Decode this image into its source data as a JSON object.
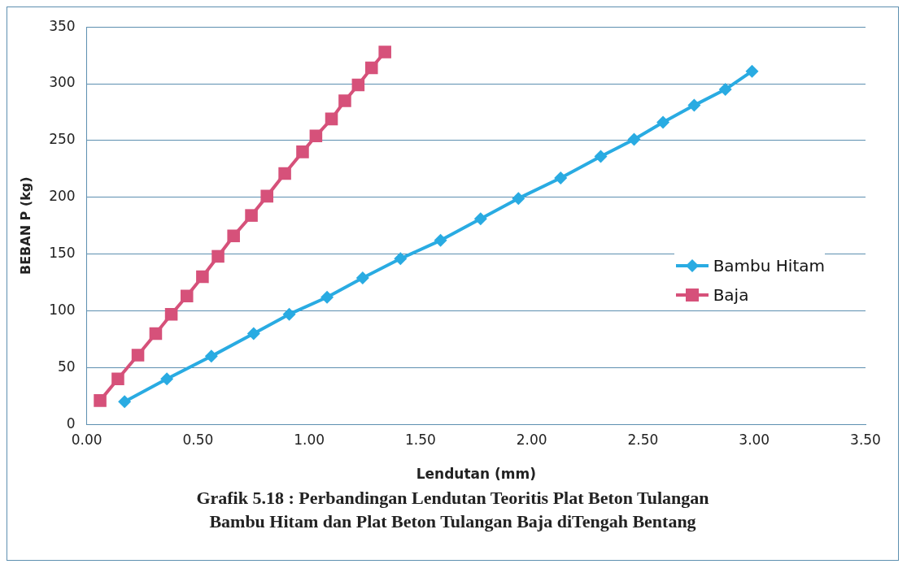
{
  "chart_data": {
    "type": "line",
    "title": "Grafik 5.18 : Perbandingan Lendutan Teoritis Plat Beton Tulangan Bambu Hitam dan Plat Beton Tulangan Baja diTengah Bentang",
    "xlabel": "Lendutan (mm)",
    "ylabel": "BEBAN P (kg)",
    "xlim": [
      0,
      3.5
    ],
    "xticks": [
      {
        "value": 0,
        "label": "0.00"
      },
      {
        "value": 0.5,
        "label": "0.50"
      },
      {
        "value": 1,
        "label": "1.00"
      },
      {
        "value": 1.5,
        "label": "1.50"
      },
      {
        "value": 2,
        "label": "2.00"
      },
      {
        "value": 2.5,
        "label": "2.50"
      },
      {
        "value": 3,
        "label": "3.00"
      },
      {
        "value": 3.5,
        "label": "3.50"
      }
    ],
    "ylim": [
      0,
      350
    ],
    "yticks": [
      0,
      50,
      100,
      150,
      200,
      250,
      300,
      350
    ],
    "grid": "y",
    "legend": "right",
    "series": [
      {
        "name": "Bambu Hitam",
        "color": "#29abe2",
        "marker": "diamond",
        "x": [
          0.17,
          0.36,
          0.56,
          0.75,
          0.91,
          1.08,
          1.24,
          1.41,
          1.59,
          1.77,
          1.94,
          2.13,
          2.31,
          2.46,
          2.59,
          2.73,
          2.87,
          2.99
        ],
        "values": [
          20,
          40,
          60,
          80,
          97,
          112,
          129,
          146,
          162,
          181,
          199,
          217,
          236,
          251,
          266,
          281,
          295,
          311
        ]
      },
      {
        "name": "Baja",
        "color": "#d6517a",
        "marker": "square",
        "x": [
          0.06,
          0.14,
          0.23,
          0.31,
          0.38,
          0.45,
          0.52,
          0.59,
          0.66,
          0.74,
          0.81,
          0.89,
          0.97,
          1.03,
          1.1,
          1.16,
          1.22,
          1.28,
          1.34
        ],
        "values": [
          21,
          40,
          61,
          80,
          97,
          113,
          130,
          148,
          166,
          184,
          201,
          221,
          240,
          254,
          269,
          285,
          299,
          314,
          328
        ]
      }
    ]
  }
}
